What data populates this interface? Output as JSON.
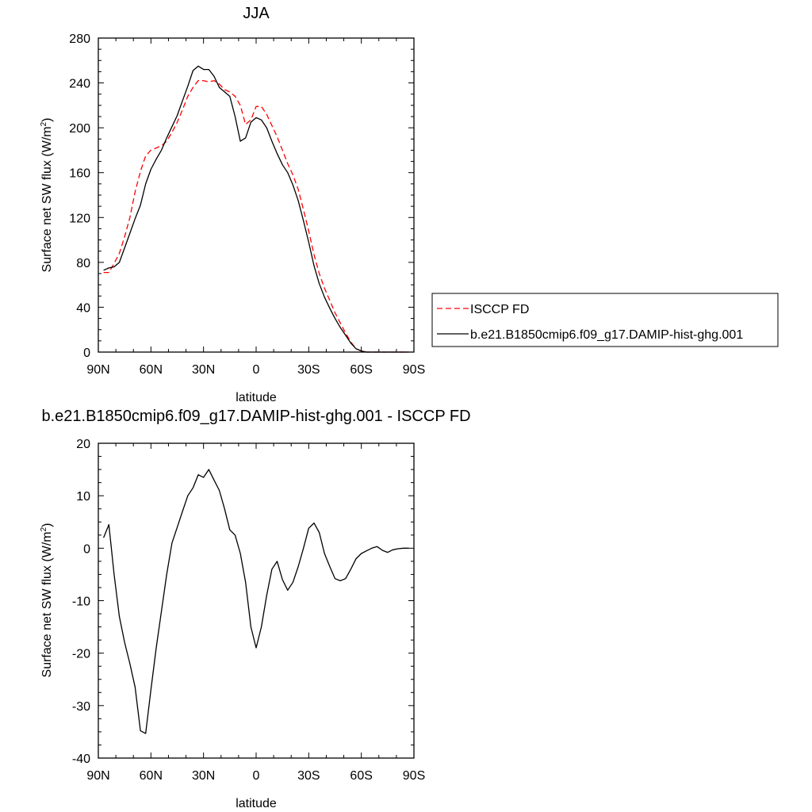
{
  "chart_data": [
    {
      "type": "line",
      "title": "JJA",
      "xlabel": "latitude",
      "ylabel_main": "Surface net SW flux (W/m",
      "ylabel_sup": "2",
      "ylabel_tail": ")",
      "xlim": [
        90,
        -90
      ],
      "ylim": [
        0,
        280
      ],
      "xticks": [
        90,
        60,
        30,
        0,
        -30,
        -60,
        -90
      ],
      "xtick_labels": [
        "90N",
        "60N",
        "30N",
        "0",
        "30S",
        "60S",
        "90S"
      ],
      "yticks": [
        0,
        40,
        80,
        120,
        160,
        200,
        240,
        280
      ],
      "ytick_labels": [
        "0",
        "40",
        "80",
        "120",
        "160",
        "200",
        "240",
        "280"
      ],
      "grid": false,
      "legend_position": "right",
      "series": [
        {
          "name": "ISCCP FD",
          "color": "#ff0000",
          "dash": "dashed",
          "x": [
            87,
            84,
            81,
            78,
            75,
            72,
            69,
            66,
            63,
            60,
            57,
            54,
            51,
            48,
            45,
            42,
            39,
            36,
            33,
            30,
            27,
            24,
            21,
            18,
            15,
            12,
            9,
            6,
            3,
            0,
            -3,
            -6,
            -9,
            -12,
            -15,
            -18,
            -21,
            -24,
            -27,
            -30,
            -33,
            -36,
            -39,
            -42,
            -45,
            -48,
            -51,
            -54,
            -57,
            -60,
            -63,
            -66,
            -69,
            -72,
            -75,
            -78,
            -81,
            -84,
            -87
          ],
          "y": [
            71,
            71,
            79,
            88,
            103,
            120,
            143,
            161,
            175,
            180,
            182,
            184,
            188,
            196,
            205,
            216,
            228,
            236,
            242,
            242,
            241,
            242,
            239,
            234,
            232,
            228,
            220,
            203,
            207,
            219,
            219,
            212,
            202,
            192,
            180,
            168,
            158,
            145,
            127,
            108,
            87,
            70,
            57,
            46,
            35,
            26,
            17,
            9,
            3,
            1,
            0,
            0,
            0,
            0,
            0,
            0,
            0,
            0,
            0
          ]
        },
        {
          "name": "b.e21.B1850cmip6.f09_g17.DAMIP-hist-ghg.001",
          "color": "#000000",
          "dash": "solid",
          "x": [
            87,
            84,
            81,
            78,
            75,
            72,
            69,
            66,
            63,
            60,
            57,
            54,
            51,
            48,
            45,
            42,
            39,
            36,
            33,
            30,
            27,
            24,
            21,
            18,
            15,
            12,
            9,
            6,
            3,
            0,
            -3,
            -6,
            -9,
            -12,
            -15,
            -18,
            -21,
            -24,
            -27,
            -30,
            -33,
            -36,
            -39,
            -42,
            -45,
            -48,
            -51,
            -54,
            -57,
            -60,
            -63,
            -66,
            -69,
            -72,
            -75,
            -78,
            -81,
            -84,
            -87
          ],
          "y": [
            73,
            75,
            76,
            80,
            93,
            106,
            119,
            131,
            150,
            163,
            172,
            180,
            191,
            201,
            211,
            224,
            237,
            251,
            255,
            252,
            252,
            246,
            236,
            232,
            228,
            210,
            188,
            191,
            205,
            209,
            207,
            200,
            188,
            177,
            167,
            160,
            149,
            135,
            117,
            98,
            77,
            61,
            49,
            39,
            30,
            22,
            15,
            8,
            3,
            1,
            0,
            0,
            0,
            0,
            0,
            0,
            0,
            0,
            0
          ]
        }
      ],
      "legend_labels": [
        "ISCCP FD",
        "b.e21.B1850cmip6.f09_g17.DAMIP-hist-ghg.001"
      ]
    },
    {
      "type": "line",
      "title": "b.e21.B1850cmip6.f09_g17.DAMIP-hist-ghg.001 - ISCCP FD",
      "xlabel": "latitude",
      "ylabel_main": "Surface net SW flux (W/m",
      "ylabel_sup": "2",
      "ylabel_tail": ")",
      "xlim": [
        90,
        -90
      ],
      "ylim": [
        -40,
        20
      ],
      "xticks": [
        90,
        60,
        30,
        0,
        -30,
        -60,
        -90
      ],
      "xtick_labels": [
        "90N",
        "60N",
        "30N",
        "0",
        "30S",
        "60S",
        "90S"
      ],
      "yticks": [
        -40,
        -30,
        -20,
        -10,
        0,
        10,
        20
      ],
      "ytick_labels": [
        "-40",
        "-30",
        "-20",
        "-10",
        "0",
        "10",
        "20"
      ],
      "grid": false,
      "series": [
        {
          "color": "#000000",
          "dash": "solid",
          "x": [
            87,
            84,
            81,
            78,
            75,
            72,
            69,
            66,
            63,
            60,
            57,
            54,
            51,
            48,
            45,
            42,
            39,
            36,
            33,
            30,
            27,
            24,
            21,
            18,
            15,
            12,
            9,
            6,
            3,
            0,
            -3,
            -6,
            -9,
            -12,
            -15,
            -18,
            -21,
            -24,
            -27,
            -30,
            -33,
            -36,
            -39,
            -42,
            -45,
            -48,
            -51,
            -54,
            -57,
            -60,
            -63,
            -66,
            -69,
            -72,
            -75,
            -78,
            -81,
            -84,
            -87
          ],
          "y": [
            2,
            4.5,
            -5,
            -13,
            -18,
            -22,
            -26.5,
            -34.8,
            -35.3,
            -27,
            -19,
            -12,
            -5,
            1,
            4,
            7,
            10,
            11.5,
            14,
            13.5,
            15,
            13,
            11,
            7.5,
            3.5,
            2.5,
            -1,
            -6.5,
            -15,
            -19,
            -15,
            -9,
            -4,
            -2.5,
            -6,
            -8,
            -6.5,
            -3.5,
            0,
            3.8,
            4.8,
            3,
            -1,
            -3.5,
            -5.8,
            -6.2,
            -5.8,
            -4,
            -2,
            -1,
            -0.5,
            0,
            0.3,
            -0.4,
            -0.8,
            -0.3,
            -0.1,
            0,
            0
          ]
        }
      ]
    }
  ]
}
